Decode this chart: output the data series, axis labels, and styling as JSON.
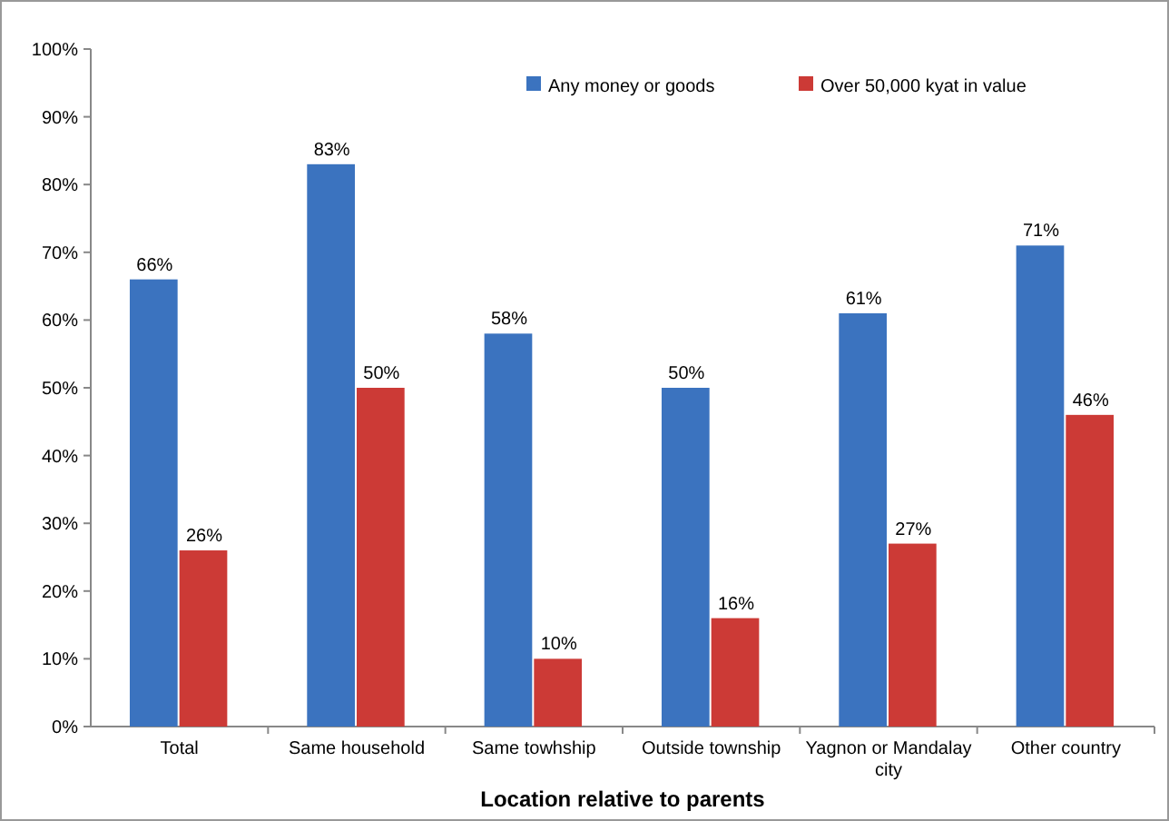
{
  "chart_data": {
    "type": "bar",
    "xlabel": "Location relative to parents",
    "categories": [
      "Total",
      "Same household",
      "Same towhship",
      "Outside township",
      "Yagnon or Mandalay city",
      "Other country"
    ],
    "series": [
      {
        "name": "Any money or goods",
        "color": "#3b73bf",
        "values": [
          66,
          83,
          58,
          50,
          61,
          71
        ],
        "value_labels": [
          "66%",
          "83%",
          "58%",
          "50%",
          "61%",
          "71%"
        ]
      },
      {
        "name": "Over 50,000 kyat in value",
        "color": "#cc3a36",
        "values": [
          26,
          50,
          10,
          16,
          27,
          46
        ],
        "value_labels": [
          "26%",
          "50%",
          "10%",
          "16%",
          "27%",
          "46%"
        ]
      }
    ],
    "ylim": [
      0,
      100
    ],
    "yticks": [
      {
        "value": 0,
        "label": "0%"
      },
      {
        "value": 10,
        "label": "10%"
      },
      {
        "value": 20,
        "label": "20%"
      },
      {
        "value": 30,
        "label": "30%"
      },
      {
        "value": 40,
        "label": "40%"
      },
      {
        "value": 50,
        "label": "50%"
      },
      {
        "value": 60,
        "label": "60%"
      },
      {
        "value": 70,
        "label": "70%"
      },
      {
        "value": 80,
        "label": "80%"
      },
      {
        "value": 90,
        "label": "90%"
      },
      {
        "value": 100,
        "label": "100%"
      }
    ],
    "grid": false,
    "legend": "top"
  }
}
